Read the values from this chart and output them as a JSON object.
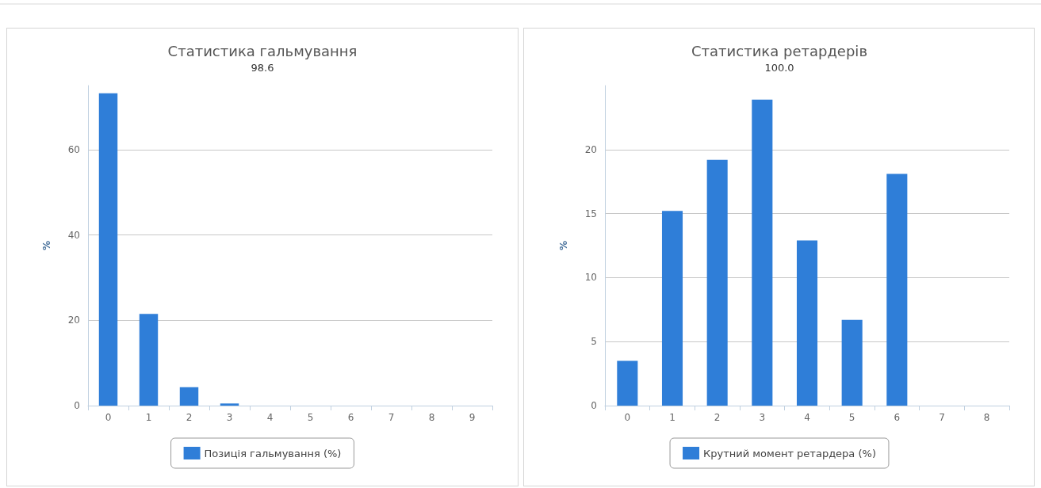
{
  "chart_data": [
    {
      "type": "bar",
      "title": "Статистика гальмування",
      "subtitle": "98.6",
      "ylabel": "%",
      "categories": [
        "0",
        "1",
        "2",
        "3",
        "4",
        "5",
        "6",
        "7",
        "8",
        "9"
      ],
      "series": [
        {
          "name": "Позиція гальмування (%)",
          "color": "#2f7ed8",
          "values": [
            73.2,
            21.5,
            4.3,
            0.5,
            0,
            0,
            0,
            0,
            0,
            0
          ]
        }
      ],
      "ylim": [
        0,
        75
      ],
      "yticks": [
        0,
        20,
        40,
        60
      ],
      "grid": "y",
      "legend": "bottom"
    },
    {
      "type": "bar",
      "title": "Статистика ретардерів",
      "subtitle": "100.0",
      "ylabel": "%",
      "categories": [
        "0",
        "1",
        "2",
        "3",
        "4",
        "5",
        "6",
        "7",
        "8"
      ],
      "series": [
        {
          "name": "Крутний момент ретардера (%)",
          "color": "#2f7ed8",
          "values": [
            3.5,
            15.2,
            19.2,
            23.9,
            12.9,
            6.7,
            18.1,
            0,
            0
          ]
        }
      ],
      "ylim": [
        0,
        25
      ],
      "yticks": [
        0,
        5,
        10,
        15,
        20
      ],
      "grid": "y",
      "legend": "bottom"
    }
  ]
}
